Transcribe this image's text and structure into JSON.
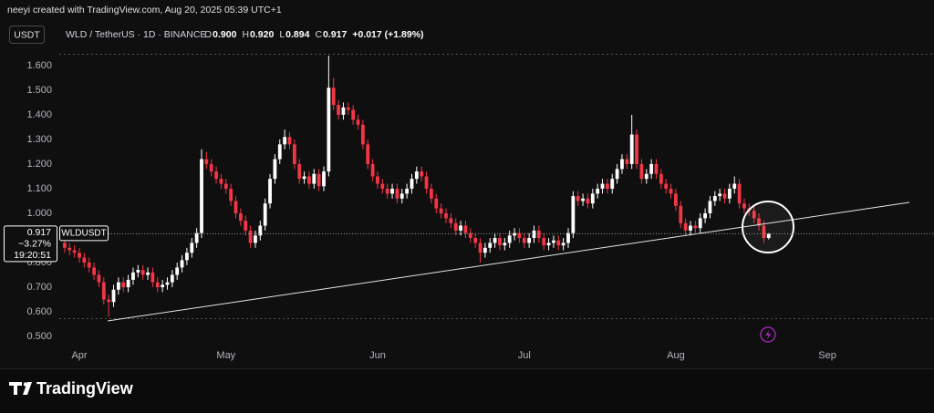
{
  "credit": "neeyi created with TradingView.com, Aug 20, 2025 05:39 UTC+1",
  "currency_button": "USDT",
  "symbol": "WLD / TetherUS · 1D · BINANCE",
  "ohlc_legend": [
    {
      "label": "O",
      "text": "0.900"
    },
    {
      "label": "H",
      "text": "0.920"
    },
    {
      "label": "L",
      "text": "0.894"
    },
    {
      "label": "C",
      "text": "0.917"
    }
  ],
  "change": "+0.017 (+1.89%)",
  "price_label": {
    "change": "−3.27%",
    "countdown": "19:20:51",
    "ticker": "WLDUSDT"
  },
  "watermark": "TradingView",
  "chart_data": {
    "type": "candlestick",
    "up_color": "#ffffff",
    "down_color": "#f23645",
    "ylim": [
      0.467,
      1.681
    ],
    "yticks": [
      {
        "value": 0.5,
        "label": "0.500"
      },
      {
        "value": 0.6,
        "label": "0.600"
      },
      {
        "value": 0.7,
        "label": "0.700"
      },
      {
        "value": 0.8,
        "label": "0.800"
      },
      {
        "value": 1.0,
        "label": "1.000"
      },
      {
        "value": 1.1,
        "label": "1.100"
      },
      {
        "value": 1.2,
        "label": "1.200"
      },
      {
        "value": 1.3,
        "label": "1.300"
      },
      {
        "value": 1.4,
        "label": "1.400"
      },
      {
        "value": 1.5,
        "label": "1.500"
      },
      {
        "value": 1.6,
        "label": "1.600"
      }
    ],
    "categories": [
      null,
      null,
      null,
      "Apr",
      null,
      null,
      null,
      null,
      null,
      null,
      null,
      null,
      null,
      null,
      null,
      null,
      null,
      null,
      null,
      null,
      null,
      null,
      null,
      null,
      null,
      null,
      null,
      null,
      null,
      null,
      null,
      null,
      null,
      "May",
      null,
      null,
      null,
      null,
      null,
      null,
      null,
      null,
      null,
      null,
      null,
      null,
      null,
      null,
      null,
      null,
      null,
      null,
      null,
      null,
      null,
      null,
      null,
      null,
      null,
      null,
      null,
      null,
      null,
      null,
      "Jun",
      null,
      null,
      null,
      null,
      null,
      null,
      null,
      null,
      null,
      null,
      null,
      null,
      null,
      null,
      null,
      null,
      null,
      null,
      null,
      null,
      null,
      null,
      null,
      null,
      null,
      null,
      null,
      null,
      null,
      "Jul",
      null,
      null,
      null,
      null,
      null,
      null,
      null,
      null,
      null,
      null,
      null,
      null,
      null,
      null,
      null,
      null,
      null,
      null,
      null,
      null,
      null,
      null,
      null,
      null,
      null,
      null,
      null,
      null,
      null,
      null,
      "Aug",
      null,
      null,
      null,
      null,
      null,
      null,
      null,
      null,
      null,
      null,
      null,
      null,
      null,
      null,
      null,
      null,
      null,
      null,
      null,
      null,
      null,
      null,
      null,
      null,
      null,
      null,
      null,
      null,
      null,
      null,
      "Sep",
      null,
      null,
      null,
      null,
      null,
      null,
      null,
      null,
      null,
      null,
      null,
      null,
      null,
      null,
      null,
      null,
      null,
      null,
      null
    ],
    "open": [
      0.88,
      0.86,
      0.85,
      0.84,
      0.82,
      0.8,
      0.78,
      0.75,
      0.72,
      0.65,
      0.64,
      0.69,
      0.72,
      0.7,
      0.73,
      0.76,
      0.77,
      0.75,
      0.76,
      0.72,
      0.7,
      0.71,
      0.72,
      0.75,
      0.78,
      0.81,
      0.84,
      0.88,
      0.92,
      1.22,
      1.2,
      1.17,
      1.14,
      1.12,
      1.1,
      1.05,
      1.0,
      0.97,
      0.93,
      0.88,
      0.91,
      0.95,
      1.04,
      1.14,
      1.22,
      1.28,
      1.31,
      1.28,
      1.2,
      1.14,
      1.15,
      1.12,
      1.16,
      1.11,
      1.17,
      1.51,
      1.44,
      1.4,
      1.43,
      1.42,
      1.38,
      1.36,
      1.28,
      1.2,
      1.15,
      1.12,
      1.1,
      1.08,
      1.1,
      1.06,
      1.08,
      1.1,
      1.14,
      1.17,
      1.15,
      1.1,
      1.06,
      1.02,
      1.0,
      0.98,
      0.96,
      0.93,
      0.95,
      0.92,
      0.9,
      0.88,
      0.84,
      0.86,
      0.88,
      0.9,
      0.87,
      0.88,
      0.91,
      0.92,
      0.9,
      0.88,
      0.9,
      0.93,
      0.9,
      0.87,
      0.88,
      0.89,
      0.87,
      0.88,
      0.92,
      1.07,
      1.05,
      1.06,
      1.04,
      1.08,
      1.1,
      1.12,
      1.1,
      1.14,
      1.18,
      1.22,
      1.2,
      1.32,
      1.2,
      1.14,
      1.16,
      1.2,
      1.16,
      1.12,
      1.1,
      1.08,
      1.03,
      0.96,
      0.93,
      0.95,
      0.94,
      0.98,
      1.0,
      1.05,
      1.07,
      1.08,
      1.06,
      1.1,
      1.12,
      1.04,
      1.02,
      1.01,
      0.98,
      0.95,
      0.9,
      null,
      null,
      null,
      null,
      null,
      null,
      null,
      null,
      null,
      null,
      null,
      null,
      null,
      null,
      null,
      null,
      null,
      null,
      null,
      null,
      null,
      null,
      null,
      null,
      null,
      null,
      null,
      null,
      null,
      null,
      null
    ],
    "high": [
      0.9,
      0.88,
      0.87,
      0.86,
      0.84,
      0.82,
      0.8,
      0.77,
      0.74,
      0.67,
      0.71,
      0.74,
      0.74,
      0.75,
      0.78,
      0.79,
      0.79,
      0.78,
      0.78,
      0.74,
      0.73,
      0.74,
      0.77,
      0.8,
      0.83,
      0.86,
      0.9,
      0.94,
      1.26,
      1.25,
      1.22,
      1.19,
      1.16,
      1.14,
      1.12,
      1.07,
      1.02,
      0.99,
      0.95,
      0.93,
      0.97,
      1.06,
      1.16,
      1.24,
      1.3,
      1.34,
      1.33,
      1.3,
      1.22,
      1.17,
      1.17,
      1.18,
      1.18,
      1.19,
      1.64,
      1.55,
      1.46,
      1.45,
      1.45,
      1.44,
      1.4,
      1.38,
      1.3,
      1.22,
      1.17,
      1.14,
      1.12,
      1.12,
      1.12,
      1.1,
      1.12,
      1.16,
      1.19,
      1.19,
      1.17,
      1.12,
      1.08,
      1.04,
      1.02,
      1.0,
      0.98,
      0.97,
      0.97,
      0.94,
      0.92,
      0.9,
      0.88,
      0.9,
      0.92,
      0.92,
      0.9,
      0.93,
      0.94,
      0.94,
      0.92,
      0.92,
      0.95,
      0.95,
      0.92,
      0.9,
      0.91,
      0.91,
      0.9,
      0.94,
      1.09,
      1.09,
      1.08,
      1.08,
      1.1,
      1.12,
      1.14,
      1.14,
      1.16,
      1.2,
      1.24,
      1.24,
      1.4,
      1.34,
      1.22,
      1.18,
      1.22,
      1.22,
      1.18,
      1.14,
      1.12,
      1.1,
      1.05,
      0.98,
      0.97,
      0.97,
      1.0,
      1.02,
      1.07,
      1.09,
      1.1,
      1.1,
      1.12,
      1.15,
      1.14,
      1.06,
      1.04,
      1.03,
      1.0,
      0.97,
      0.92,
      null,
      null,
      null,
      null,
      null,
      null,
      null,
      null,
      null,
      null,
      null,
      null,
      null,
      null,
      null,
      null,
      null,
      null,
      null,
      null,
      null,
      null,
      null,
      null,
      null,
      null,
      null,
      null,
      null,
      null,
      null
    ],
    "low": [
      0.84,
      0.83,
      0.82,
      0.8,
      0.78,
      0.76,
      0.73,
      0.7,
      0.63,
      0.58,
      0.62,
      0.67,
      0.68,
      0.68,
      0.71,
      0.74,
      0.73,
      0.73,
      0.7,
      0.68,
      0.68,
      0.69,
      0.7,
      0.73,
      0.76,
      0.79,
      0.82,
      0.86,
      0.9,
      1.18,
      1.15,
      1.12,
      1.1,
      1.08,
      1.03,
      0.98,
      0.95,
      0.91,
      0.86,
      0.86,
      0.89,
      0.93,
      1.02,
      1.12,
      1.2,
      1.26,
      1.26,
      1.18,
      1.12,
      1.12,
      1.1,
      1.1,
      1.09,
      1.09,
      1.15,
      1.42,
      1.38,
      1.38,
      1.4,
      1.36,
      1.34,
      1.26,
      1.18,
      1.13,
      1.1,
      1.08,
      1.06,
      1.06,
      1.04,
      1.04,
      1.06,
      1.08,
      1.12,
      1.13,
      1.08,
      1.04,
      1.0,
      0.98,
      0.96,
      0.94,
      0.91,
      0.91,
      0.9,
      0.88,
      0.86,
      0.8,
      0.82,
      0.84,
      0.86,
      0.85,
      0.85,
      0.86,
      0.89,
      0.88,
      0.86,
      0.86,
      0.88,
      0.88,
      0.85,
      0.85,
      0.86,
      0.85,
      0.85,
      0.86,
      0.9,
      1.03,
      1.03,
      1.02,
      1.02,
      1.06,
      1.08,
      1.08,
      1.08,
      1.12,
      1.16,
      1.18,
      1.18,
      1.18,
      1.12,
      1.12,
      1.14,
      1.14,
      1.1,
      1.08,
      1.06,
      1.01,
      0.94,
      0.91,
      0.91,
      0.92,
      0.92,
      0.96,
      0.98,
      1.03,
      1.05,
      1.04,
      1.04,
      1.08,
      1.02,
      1.0,
      0.99,
      0.96,
      0.93,
      0.88,
      0.894,
      null,
      null,
      null,
      null,
      null,
      null,
      null,
      null,
      null,
      null,
      null,
      null,
      null,
      null,
      null,
      null,
      null,
      null,
      null,
      null,
      null,
      null,
      null,
      null,
      null,
      null,
      null,
      null,
      null,
      null,
      null
    ],
    "close": [
      0.86,
      0.85,
      0.84,
      0.82,
      0.8,
      0.78,
      0.75,
      0.72,
      0.65,
      0.64,
      0.69,
      0.72,
      0.7,
      0.73,
      0.76,
      0.77,
      0.75,
      0.76,
      0.72,
      0.7,
      0.71,
      0.72,
      0.75,
      0.78,
      0.81,
      0.84,
      0.88,
      0.92,
      1.22,
      1.2,
      1.17,
      1.14,
      1.12,
      1.1,
      1.05,
      1.0,
      0.97,
      0.93,
      0.88,
      0.91,
      0.95,
      1.04,
      1.14,
      1.22,
      1.28,
      1.31,
      1.28,
      1.2,
      1.14,
      1.15,
      1.12,
      1.16,
      1.11,
      1.17,
      1.51,
      1.44,
      1.4,
      1.43,
      1.42,
      1.38,
      1.36,
      1.28,
      1.2,
      1.15,
      1.12,
      1.1,
      1.08,
      1.1,
      1.06,
      1.08,
      1.1,
      1.14,
      1.17,
      1.15,
      1.1,
      1.06,
      1.02,
      1.0,
      0.98,
      0.96,
      0.93,
      0.95,
      0.92,
      0.9,
      0.88,
      0.84,
      0.86,
      0.88,
      0.9,
      0.87,
      0.88,
      0.91,
      0.92,
      0.9,
      0.88,
      0.9,
      0.93,
      0.9,
      0.87,
      0.88,
      0.89,
      0.87,
      0.88,
      0.92,
      1.07,
      1.05,
      1.06,
      1.04,
      1.08,
      1.1,
      1.12,
      1.1,
      1.14,
      1.18,
      1.22,
      1.2,
      1.32,
      1.2,
      1.14,
      1.16,
      1.2,
      1.16,
      1.12,
      1.1,
      1.08,
      1.03,
      0.96,
      0.93,
      0.95,
      0.94,
      0.98,
      1.0,
      1.05,
      1.07,
      1.08,
      1.06,
      1.1,
      1.12,
      1.04,
      1.02,
      1.01,
      0.98,
      0.95,
      0.9,
      0.917,
      null,
      null,
      null,
      null,
      null,
      null,
      null,
      null,
      null,
      null,
      null,
      null,
      null,
      null,
      null,
      null,
      null,
      null,
      null,
      null,
      null,
      null,
      null,
      null,
      null,
      null,
      null,
      null,
      null,
      null,
      null
    ]
  }
}
